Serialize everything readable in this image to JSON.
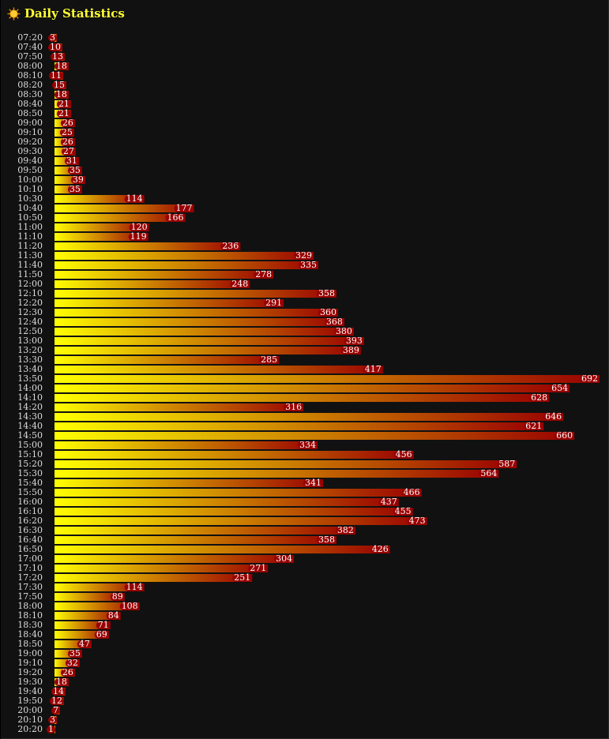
{
  "header": {
    "title": "Daily Statistics",
    "icon": "sun-icon"
  },
  "colors": {
    "background": "#111111",
    "title": "#ffff33",
    "bar_start": "#ffff00",
    "bar_end": "#990000",
    "label": "#dddddd",
    "value_text": "#ffffff",
    "value_bg": "#990000"
  },
  "chart_data": {
    "type": "bar",
    "orientation": "horizontal",
    "title": "Daily Statistics",
    "xlabel": "",
    "ylabel": "",
    "grid": false,
    "xlim": [
      0,
      692
    ],
    "categories": [
      "07:20",
      "07:40",
      "07:50",
      "08:00",
      "08:10",
      "08:20",
      "08:30",
      "08:40",
      "08:50",
      "09:00",
      "09:10",
      "09:20",
      "09:30",
      "09:40",
      "09:50",
      "10:00",
      "10:10",
      "10:30",
      "10:40",
      "10:50",
      "11:00",
      "11:10",
      "11:20",
      "11:30",
      "11:40",
      "11:50",
      "12:00",
      "12:10",
      "12:20",
      "12:30",
      "12:40",
      "12:50",
      "13:00",
      "13:20",
      "13:30",
      "13:40",
      "13:50",
      "14:00",
      "14:10",
      "14:20",
      "14:30",
      "14:40",
      "14:50",
      "15:00",
      "15:10",
      "15:20",
      "15:30",
      "15:40",
      "15:50",
      "16:00",
      "16:10",
      "16:20",
      "16:30",
      "16:40",
      "16:50",
      "17:00",
      "17:10",
      "17:20",
      "17:30",
      "17:50",
      "18:00",
      "18:10",
      "18:30",
      "18:40",
      "18:50",
      "19:00",
      "19:10",
      "19:20",
      "19:30",
      "19:40",
      "19:50",
      "20:00",
      "20:10",
      "20:20"
    ],
    "values": [
      3,
      10,
      13,
      18,
      11,
      15,
      18,
      21,
      21,
      26,
      25,
      26,
      27,
      31,
      35,
      39,
      35,
      114,
      177,
      166,
      120,
      119,
      236,
      329,
      335,
      278,
      248,
      358,
      291,
      360,
      368,
      380,
      393,
      389,
      285,
      417,
      692,
      654,
      628,
      316,
      646,
      621,
      660,
      334,
      456,
      587,
      564,
      341,
      466,
      437,
      455,
      473,
      382,
      358,
      426,
      304,
      271,
      251,
      114,
      89,
      108,
      84,
      71,
      69,
      47,
      35,
      32,
      26,
      18,
      14,
      12,
      7,
      3,
      1
    ]
  }
}
